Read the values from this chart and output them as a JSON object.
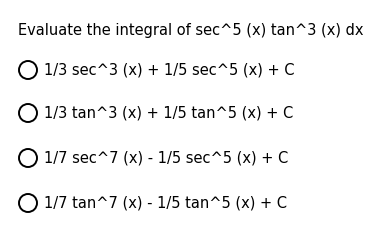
{
  "title": "Evaluate the integral of sec^5 (x) tan^3 (x) dx",
  "option_texts": [
    "1/3 sec^3 (x) + 1/5 sec^5 (x) + C",
    "1/3 tan^3 (x) + 1/5 tan^5 (x) + C",
    "1/7 sec^7 (x) - 1/5 sec^5 (x) + C",
    "1/7 tan^7 (x) - 1/5 tan^5 (x) + C"
  ],
  "background_color": "#ffffff",
  "text_color": "#000000",
  "title_fontsize": 10.5,
  "option_fontsize": 10.5,
  "circle_color": "#000000",
  "circle_linewidth": 1.4
}
